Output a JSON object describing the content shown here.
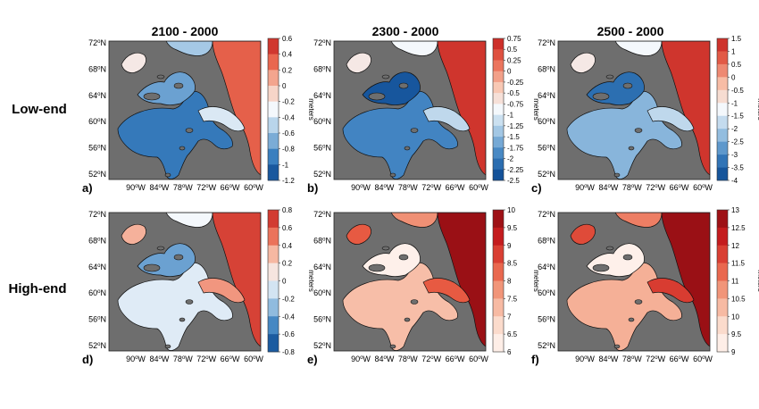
{
  "columns": [
    "2100 - 2000",
    "2300 - 2000",
    "2500 - 2000"
  ],
  "rows": [
    "Low-end",
    "High-end"
  ],
  "lat_ticks": [
    "72",
    "68",
    "64",
    "60",
    "56",
    "52"
  ],
  "lon_ticks": [
    "90",
    "84",
    "78",
    "72",
    "66",
    "60"
  ],
  "lat_suffix": "N",
  "lon_suffix": "W",
  "degree": "o",
  "colorbar_unit": "meters",
  "panels": [
    {
      "letter": "a)",
      "row": 0,
      "col": 0,
      "scheme": "div",
      "ticks": [
        "0.6",
        "0.4",
        "0.2",
        "0",
        "-0.2",
        "-0.4",
        "-0.6",
        "-0.8",
        "-1",
        "-1.2"
      ],
      "fields": {
        "hb": 0.15,
        "fox": 0.25,
        "strait": 0.45,
        "north": 0.55,
        "labrador": 0.85,
        "sea": 0.35
      }
    },
    {
      "letter": "b)",
      "row": 0,
      "col": 1,
      "scheme": "div",
      "ticks": [
        "0.75",
        "0.5",
        "0.25",
        "0",
        "-0.25",
        "-0.5",
        "-0.75",
        "-1",
        "-1.25",
        "-1.5",
        "-1.75",
        "-2",
        "-2.25",
        "-2.5"
      ],
      "fields": {
        "hb": 0.18,
        "fox": 0.05,
        "strait": 0.4,
        "north": 0.55,
        "labrador": 0.95,
        "sea": 0.5
      }
    },
    {
      "letter": "c)",
      "row": 0,
      "col": 2,
      "scheme": "div",
      "ticks": [
        "1.5",
        "1",
        "0.5",
        "0",
        "-0.5",
        "-1",
        "-1.5",
        "-2",
        "-2.5",
        "-3",
        "-3.5",
        "-4"
      ],
      "fields": {
        "hb": 0.3,
        "fox": 0.12,
        "strait": 0.4,
        "north": 0.55,
        "labrador": 0.95,
        "sea": 0.5
      }
    },
    {
      "letter": "d)",
      "row": 1,
      "col": 0,
      "scheme": "div",
      "ticks": [
        "0.8",
        "0.6",
        "0.4",
        "0.2",
        "0",
        "-0.2",
        "-0.4",
        "-0.6",
        "-0.8"
      ],
      "fields": {
        "hb": 0.46,
        "fox": 0.25,
        "strait": 0.75,
        "north": 0.7,
        "labrador": 0.92,
        "sea": 0.5
      }
    },
    {
      "letter": "e)",
      "row": 1,
      "col": 1,
      "scheme": "seq",
      "ticks": [
        "10",
        "9.5",
        "9",
        "8.5",
        "8",
        "7.5",
        "7",
        "6.5",
        "6"
      ],
      "fields": {
        "hb": 0.3,
        "fox": 0.05,
        "strait": 0.6,
        "north": 0.6,
        "labrador": 0.95,
        "sea": 0.45
      }
    },
    {
      "letter": "f)",
      "row": 1,
      "col": 2,
      "scheme": "seq",
      "ticks": [
        "13",
        "12.5",
        "12",
        "11.5",
        "11",
        "10.5",
        "10",
        "9.5",
        "9"
      ],
      "fields": {
        "hb": 0.35,
        "fox": 0.05,
        "strait": 0.7,
        "north": 0.65,
        "labrador": 0.95,
        "sea": 0.5
      }
    }
  ],
  "colors": {
    "land": "#6e6e6e",
    "axis": "#222222"
  }
}
